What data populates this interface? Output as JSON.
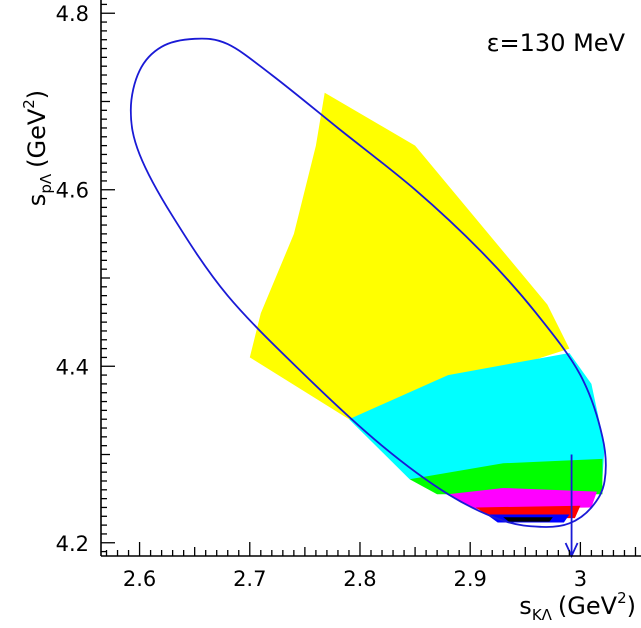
{
  "chart_data": {
    "type": "heatmap",
    "title": "",
    "annotation": "ε=130 MeV",
    "xlabel": {
      "base": "s",
      "sub": "KΛ",
      "unit": "(GeV",
      "sup": "2",
      "close": ")"
    },
    "ylabel": {
      "base": "s",
      "sub": "pΛ",
      "unit": "(GeV",
      "sup": "2",
      "close": ")"
    },
    "xlim": [
      2.565,
      3.055
    ],
    "ylim": [
      4.185,
      4.815
    ],
    "x_ticks": [
      {
        "value": 2.6,
        "label": "2.6"
      },
      {
        "value": 2.7,
        "label": "2.7"
      },
      {
        "value": 2.8,
        "label": "2.8"
      },
      {
        "value": 2.9,
        "label": "2.9"
      },
      {
        "value": 3.0,
        "label": "3"
      }
    ],
    "y_ticks": [
      {
        "value": 4.2,
        "label": "4.2"
      },
      {
        "value": 4.4,
        "label": "4.4"
      },
      {
        "value": 4.6,
        "label": "4.6"
      },
      {
        "value": 4.8,
        "label": "4.8"
      }
    ],
    "dalitz_boundary": {
      "color": "#1a1ad6",
      "points": [
        [
          2.65,
          4.771
        ],
        [
          2.62,
          4.762
        ],
        [
          2.6,
          4.735
        ],
        [
          2.592,
          4.69
        ],
        [
          2.6,
          4.64
        ],
        [
          2.63,
          4.57
        ],
        [
          2.68,
          4.48
        ],
        [
          2.75,
          4.39
        ],
        [
          2.82,
          4.31
        ],
        [
          2.88,
          4.255
        ],
        [
          2.93,
          4.225
        ],
        [
          2.965,
          4.218
        ],
        [
          2.99,
          4.222
        ],
        [
          3.01,
          4.24
        ],
        [
          3.022,
          4.27
        ],
        [
          3.02,
          4.32
        ],
        [
          3.0,
          4.39
        ],
        [
          2.96,
          4.46
        ],
        [
          2.91,
          4.53
        ],
        [
          2.85,
          4.6
        ],
        [
          2.78,
          4.67
        ],
        [
          2.72,
          4.73
        ],
        [
          2.68,
          4.765
        ],
        [
          2.65,
          4.771
        ]
      ]
    },
    "regions": [
      {
        "color": "#ffff00",
        "name": "yellow",
        "points": [
          [
            2.768,
            4.71
          ],
          [
            2.85,
            4.65
          ],
          [
            2.97,
            4.47
          ],
          [
            2.99,
            4.42
          ],
          [
            2.79,
            4.34
          ],
          [
            2.7,
            4.41
          ],
          [
            2.71,
            4.46
          ],
          [
            2.74,
            4.55
          ],
          [
            2.76,
            4.65
          ]
        ]
      },
      {
        "color": "#00ffff",
        "name": "cyan",
        "points": [
          [
            2.79,
            4.34
          ],
          [
            2.88,
            4.39
          ],
          [
            2.99,
            4.415
          ],
          [
            3.01,
            4.38
          ],
          [
            3.022,
            4.31
          ],
          [
            3.02,
            4.272
          ],
          [
            2.845,
            4.272
          ]
        ]
      },
      {
        "color": "#00ff00",
        "name": "green",
        "points": [
          [
            2.845,
            4.272
          ],
          [
            2.93,
            4.29
          ],
          [
            3.02,
            4.295
          ],
          [
            3.02,
            4.255
          ],
          [
            2.87,
            4.255
          ]
        ]
      },
      {
        "color": "#ff00ff",
        "name": "magenta",
        "points": [
          [
            2.88,
            4.255
          ],
          [
            2.93,
            4.262
          ],
          [
            3.015,
            4.258
          ],
          [
            3.01,
            4.24
          ],
          [
            2.905,
            4.238
          ]
        ]
      },
      {
        "color": "#ff0000",
        "name": "red",
        "points": [
          [
            2.905,
            4.24
          ],
          [
            3.0,
            4.242
          ],
          [
            2.995,
            4.228
          ],
          [
            2.92,
            4.228
          ]
        ]
      },
      {
        "color": "#0000ff",
        "name": "blue",
        "points": [
          [
            2.915,
            4.232
          ],
          [
            2.99,
            4.232
          ],
          [
            2.985,
            4.223
          ],
          [
            2.925,
            4.223
          ]
        ]
      },
      {
        "color": "#000000",
        "name": "black",
        "points": [
          [
            2.93,
            4.229
          ],
          [
            2.975,
            4.229
          ],
          [
            2.972,
            4.224
          ],
          [
            2.935,
            4.224
          ]
        ]
      }
    ],
    "threshold_arrow": {
      "x": 2.992,
      "y_from": 4.3,
      "y_to": 4.185,
      "color": "#1a1ad6"
    },
    "grid": false,
    "legend": "none"
  }
}
